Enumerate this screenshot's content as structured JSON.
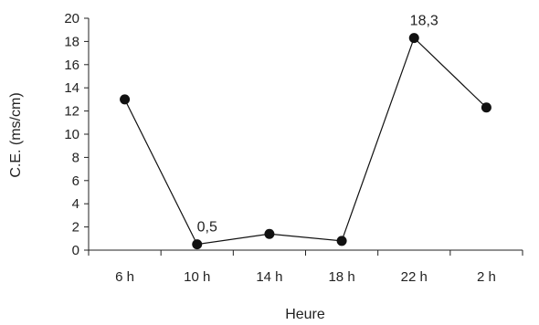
{
  "chart_data": {
    "type": "line",
    "categories": [
      "6 h",
      "10 h",
      "14 h",
      "18 h",
      "22 h",
      "2 h"
    ],
    "values": [
      13.0,
      0.5,
      1.4,
      0.8,
      18.3,
      12.3
    ],
    "xlabel": "Heure",
    "ylabel": "C.E. (ms/cm)",
    "ylim": [
      0,
      20
    ],
    "yticks": [
      0,
      2,
      4,
      6,
      8,
      10,
      12,
      14,
      16,
      18,
      20
    ],
    "ytick_labels": [
      "0",
      "2",
      "4",
      "6",
      "8",
      "10",
      "12",
      "14",
      "16",
      "18",
      "20"
    ],
    "data_labels": [
      {
        "index": 1,
        "text": "0,5"
      },
      {
        "index": 4,
        "text": "18,3"
      }
    ],
    "grid": false,
    "legend": "none",
    "colors": {
      "line": "#111111",
      "marker": "#111111",
      "axis": "#222222"
    }
  }
}
